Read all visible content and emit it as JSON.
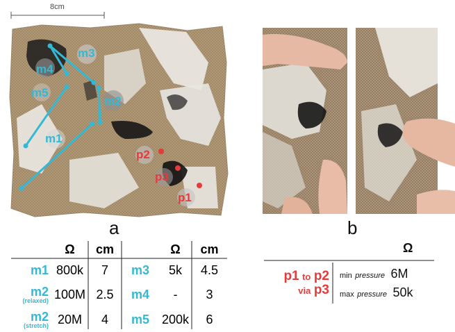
{
  "colors": {
    "cyan": "#33b9d4",
    "red": "#e53b3b",
    "fabric_tan": "#b39a78",
    "ink": "#1a1a1a"
  },
  "scale_bar": {
    "label": "8cm"
  },
  "panel_a": {
    "caption": "a",
    "marker_labels": {
      "m1": "m1",
      "m2": "m2",
      "m3": "m3",
      "m4": "m4",
      "m5": "m5",
      "p1": "p1",
      "p2": "p2",
      "p3": "p3"
    }
  },
  "panel_b": {
    "caption": "b"
  },
  "table_left": {
    "headers": [
      "Ω",
      "cm",
      "Ω",
      "cm"
    ],
    "rows": [
      {
        "name": "m1",
        "sub": "",
        "ohm": "800k",
        "cm": "7",
        "name2": "m3",
        "ohm2": "5k",
        "cm2": "4.5"
      },
      {
        "name": "m2",
        "sub": "(relaxed)",
        "ohm": "100M",
        "cm": "2.5",
        "name2": "m4",
        "ohm2": "-",
        "cm2": "3"
      },
      {
        "name": "m2",
        "sub": "(stretch)",
        "ohm": "20M",
        "cm": "4",
        "name2": "m5",
        "ohm2": "200k",
        "cm2": "6"
      }
    ]
  },
  "table_right": {
    "header": "Ω",
    "path": {
      "from": "p1",
      "to_word": "to",
      "to": "p2",
      "via_word": "via",
      "via": "p3"
    },
    "rows": [
      {
        "condition_prefix": "min",
        "condition_word": "pressure",
        "value": "6M"
      },
      {
        "condition_prefix": "max",
        "condition_word": "pressure",
        "value": "50k"
      }
    ]
  }
}
